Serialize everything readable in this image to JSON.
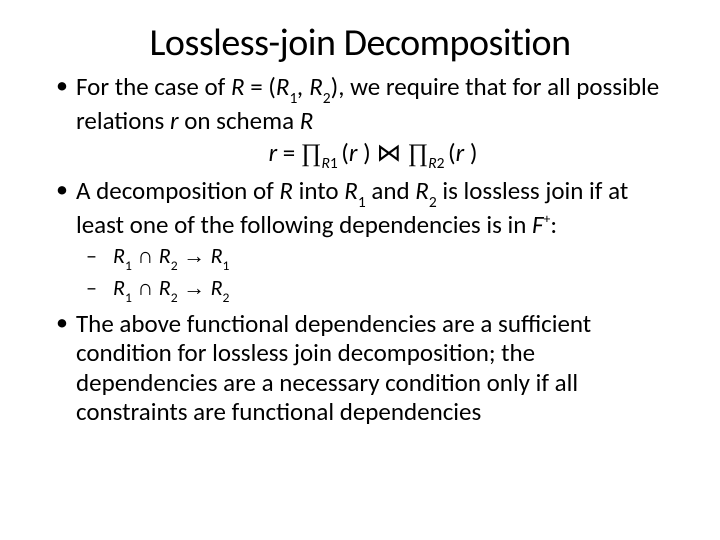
{
  "title": "Lossless-join Decomposition",
  "bullets": {
    "b1a": "For the case of ",
    "b1b": "R",
    "b1c": " = (",
    "b1d": "R",
    "b1e": "1",
    "b1f": ", ",
    "b1g": "R",
    "b1h": "2",
    "b1i": "), we require that for all possible relations ",
    "b1j": "r",
    "b1k": " on schema ",
    "b1l": "R",
    "formula_r": "r",
    "formula_eq": " = ",
    "formula_pi": "∏",
    "formula_R1": "R",
    "formula_1": "1 ",
    "formula_open": "(",
    "formula_r2": "r ",
    "formula_close": ") ",
    "formula_join": "⋈ ",
    "formula_R2": "R",
    "formula_2": "2 ",
    "b2a": "A decomposition of ",
    "b2b": "R",
    "b2c": " into ",
    "b2d": "R",
    "b2e": "1",
    "b2f": " and ",
    "b2g": "R",
    "b2h": "2",
    "b2i": " is lossless join if at least one of the following dependencies is in ",
    "b2j": "F",
    "b2k": "+",
    "b2l": ":",
    "s1a": "R",
    "s1b": "1",
    "s1c": " ∩ ",
    "s1d": "R",
    "s1e": "2",
    "s1f": " → ",
    "s1g": "R",
    "s1h": "1",
    "s2a": "R",
    "s2b": "1",
    "s2c": " ∩ ",
    "s2d": "R",
    "s2e": "2",
    "s2f": " → ",
    "s2g": "R",
    "s2h": "2",
    "b3": "The above functional dependencies are a sufficient condition for lossless join decomposition; the dependencies are a necessary condition only if all constraints are functional dependencies"
  },
  "style": {
    "background_color": "#ffffff",
    "text_color": "#000000",
    "title_fontsize": 38,
    "body_fontsize": 25,
    "sub_fontsize": 22,
    "font_family": "Calibri"
  }
}
